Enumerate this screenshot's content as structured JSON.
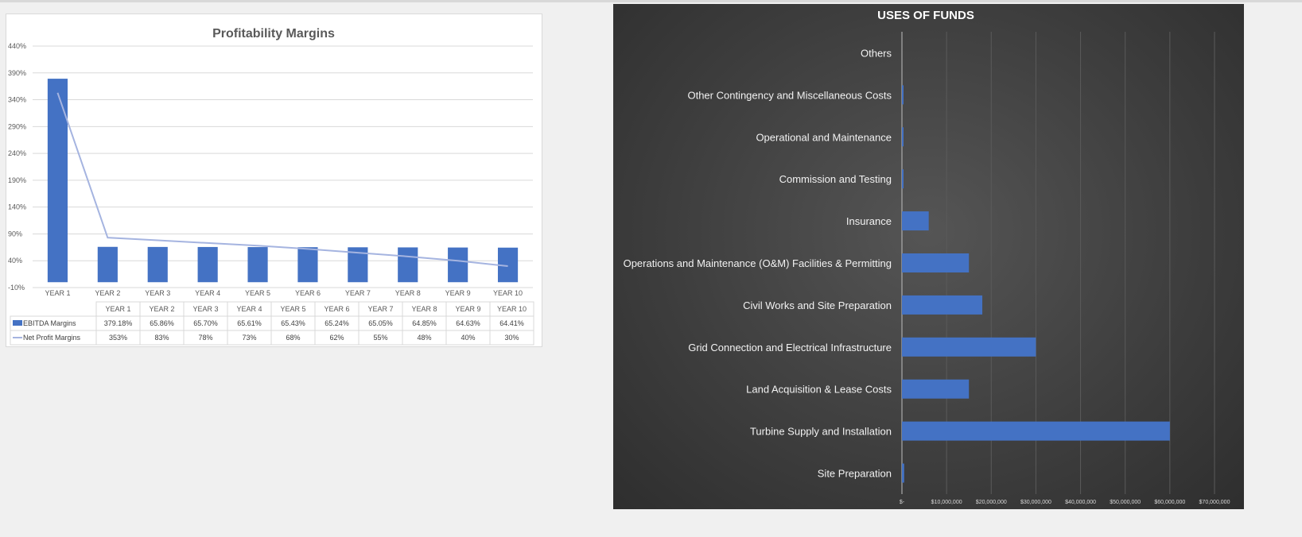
{
  "chart_data": [
    {
      "type": "bar+line",
      "title": "Profitability Margins",
      "categories": [
        "YEAR 1",
        "YEAR 2",
        "YEAR 3",
        "YEAR 4",
        "YEAR 5",
        "YEAR 6",
        "YEAR 7",
        "YEAR 8",
        "YEAR 9",
        "YEAR 10"
      ],
      "yticks": [
        "440%",
        "390%",
        "340%",
        "290%",
        "240%",
        "190%",
        "140%",
        "90%",
        "40%",
        "-10%"
      ],
      "ylim": [
        -10,
        440
      ],
      "grid": true,
      "legend": "data-table",
      "series": [
        {
          "name": "EBITDA Margins",
          "type": "bar",
          "color": "#4472c4",
          "values": [
            379.18,
            65.86,
            65.7,
            65.61,
            65.43,
            65.24,
            65.05,
            64.85,
            64.63,
            64.41
          ],
          "labels": [
            "379.18%",
            "65.86%",
            "65.70%",
            "65.61%",
            "65.43%",
            "65.24%",
            "65.05%",
            "64.85%",
            "64.63%",
            "64.41%"
          ]
        },
        {
          "name": "Net Profit Margins",
          "type": "line",
          "color": "#a5b4e0",
          "values": [
            353,
            83,
            78,
            73,
            68,
            62,
            55,
            48,
            40,
            30
          ],
          "labels": [
            "353%",
            "83%",
            "78%",
            "73%",
            "68%",
            "62%",
            "55%",
            "48%",
            "40%",
            "30%"
          ]
        }
      ]
    },
    {
      "type": "bar",
      "orientation": "horizontal",
      "title": "USES OF FUNDS",
      "categories": [
        "Site Preparation",
        "Turbine Supply and Installation",
        "Land Acquisition & Lease Costs",
        "Grid Connection and Electrical Infrastructure",
        "Civil Works and Site Preparation",
        "Operations and Maintenance (O&M) Facilities & Permitting",
        "Insurance",
        "Commission and Testing",
        "Operational and Maintenance",
        "Other Contingency and Miscellaneous Costs",
        "Others"
      ],
      "values": [
        500000,
        60000000,
        15000000,
        30000000,
        18000000,
        15000000,
        6000000,
        300000,
        200000,
        200000,
        0
      ],
      "xticks": [
        "$-",
        "$10,000,000",
        "$20,000,000",
        "$30,000,000",
        "$40,000,000",
        "$50,000,000",
        "$60,000,000",
        "$70,000,000"
      ],
      "xlim": [
        0,
        70000000
      ],
      "grid": true,
      "color": "#4472c4"
    }
  ]
}
